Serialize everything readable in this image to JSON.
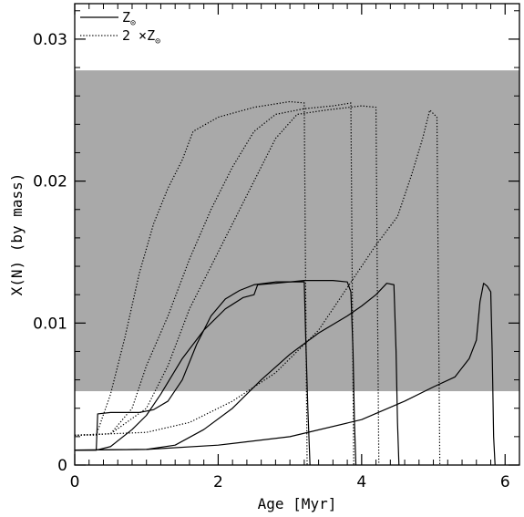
{
  "chart_data": {
    "type": "line",
    "xlabel": "Age [Myr]",
    "ylabel": "X(N) (by mass)",
    "xlim": [
      0,
      6.2
    ],
    "ylim": [
      0,
      0.0325
    ],
    "xticks": [
      0,
      2,
      4,
      6
    ],
    "yticks": [
      0,
      0.01,
      0.02,
      0.03
    ],
    "xtick_labels": [
      "0",
      "2",
      "4",
      "6"
    ],
    "ytick_labels": [
      "0",
      "0.01",
      "0.02",
      "0.03"
    ],
    "grid": false,
    "legend_position": "top-left",
    "shaded_band": {
      "y_range": [
        0.0052,
        0.0278
      ],
      "color": "#a9a9a9"
    },
    "legend": [
      {
        "label": "Z",
        "subscript": "⊙",
        "style": "solid"
      },
      {
        "label": "2 ×Z",
        "subscript": "⊙",
        "style": "dotted"
      }
    ],
    "series": [
      {
        "style": "solid",
        "points": [
          [
            0,
            0.00105
          ],
          [
            0.3,
            0.00105
          ],
          [
            0.32,
            0.0036
          ],
          [
            0.5,
            0.0037
          ],
          [
            0.9,
            0.0037
          ],
          [
            1.1,
            0.0039
          ],
          [
            1.3,
            0.0045
          ],
          [
            1.5,
            0.006
          ],
          [
            1.7,
            0.0085
          ],
          [
            1.9,
            0.0105
          ],
          [
            2.1,
            0.0117
          ],
          [
            2.3,
            0.0123
          ],
          [
            2.5,
            0.0127
          ],
          [
            2.8,
            0.0129
          ],
          [
            3.1,
            0.0129
          ],
          [
            3.2,
            0.0129
          ],
          [
            3.22,
            0.009
          ],
          [
            3.25,
            0.004
          ],
          [
            3.28,
            0
          ]
        ]
      },
      {
        "style": "solid",
        "points": [
          [
            0,
            0.00105
          ],
          [
            0.3,
            0.00105
          ],
          [
            0.5,
            0.0013
          ],
          [
            0.8,
            0.0025
          ],
          [
            1.0,
            0.0035
          ],
          [
            1.2,
            0.005
          ],
          [
            1.5,
            0.0075
          ],
          [
            1.8,
            0.0095
          ],
          [
            2.1,
            0.011
          ],
          [
            2.35,
            0.0118
          ],
          [
            2.5,
            0.012
          ],
          [
            2.55,
            0.0127
          ],
          [
            2.8,
            0.0128
          ],
          [
            3.2,
            0.013
          ],
          [
            3.6,
            0.013
          ],
          [
            3.8,
            0.0129
          ],
          [
            3.85,
            0.0122
          ],
          [
            3.88,
            0.008
          ],
          [
            3.9,
            0.003
          ],
          [
            3.92,
            0
          ]
        ]
      },
      {
        "style": "solid",
        "points": [
          [
            0,
            0.00105
          ],
          [
            1.0,
            0.0011
          ],
          [
            1.4,
            0.0014
          ],
          [
            1.8,
            0.0025
          ],
          [
            2.2,
            0.004
          ],
          [
            2.6,
            0.006
          ],
          [
            3.0,
            0.0078
          ],
          [
            3.4,
            0.0093
          ],
          [
            3.8,
            0.0105
          ],
          [
            4.0,
            0.0112
          ],
          [
            4.2,
            0.012
          ],
          [
            4.35,
            0.0128
          ],
          [
            4.45,
            0.0127
          ],
          [
            4.48,
            0.008
          ],
          [
            4.5,
            0.003
          ],
          [
            4.52,
            0
          ]
        ]
      },
      {
        "style": "solid",
        "points": [
          [
            0,
            0.00105
          ],
          [
            1.0,
            0.0011
          ],
          [
            2.0,
            0.0014
          ],
          [
            3.0,
            0.002
          ],
          [
            4.0,
            0.0032
          ],
          [
            4.6,
            0.0045
          ],
          [
            5.0,
            0.0055
          ],
          [
            5.3,
            0.0062
          ],
          [
            5.5,
            0.0075
          ],
          [
            5.6,
            0.0088
          ],
          [
            5.65,
            0.0115
          ],
          [
            5.7,
            0.0128
          ],
          [
            5.75,
            0.0126
          ],
          [
            5.8,
            0.0122
          ],
          [
            5.82,
            0.008
          ],
          [
            5.84,
            0.002
          ],
          [
            5.86,
            0
          ]
        ]
      },
      {
        "style": "dotted",
        "points": [
          [
            0,
            0.0021
          ],
          [
            0.3,
            0.0021
          ],
          [
            0.5,
            0.005
          ],
          [
            0.7,
            0.009
          ],
          [
            0.9,
            0.0135
          ],
          [
            1.1,
            0.017
          ],
          [
            1.3,
            0.0195
          ],
          [
            1.5,
            0.0215
          ],
          [
            1.65,
            0.0235
          ],
          [
            2.0,
            0.0245
          ],
          [
            2.5,
            0.0252
          ],
          [
            3.0,
            0.0256
          ],
          [
            3.2,
            0.0255
          ],
          [
            3.22,
            0.012
          ],
          [
            3.24,
            0
          ]
        ]
      },
      {
        "style": "dotted",
        "points": [
          [
            0,
            0.0021
          ],
          [
            0.5,
            0.0022
          ],
          [
            0.8,
            0.004
          ],
          [
            1.0,
            0.007
          ],
          [
            1.3,
            0.0105
          ],
          [
            1.6,
            0.0145
          ],
          [
            1.9,
            0.018
          ],
          [
            2.2,
            0.021
          ],
          [
            2.5,
            0.0235
          ],
          [
            2.8,
            0.0247
          ],
          [
            3.2,
            0.0251
          ],
          [
            3.6,
            0.0253
          ],
          [
            3.85,
            0.0255
          ],
          [
            3.87,
            0.012
          ],
          [
            3.89,
            0
          ]
        ]
      },
      {
        "style": "dotted",
        "points": [
          [
            0,
            0.0021
          ],
          [
            0.5,
            0.0022
          ],
          [
            1.0,
            0.004
          ],
          [
            1.3,
            0.007
          ],
          [
            1.6,
            0.011
          ],
          [
            2.0,
            0.015
          ],
          [
            2.4,
            0.019
          ],
          [
            2.8,
            0.023
          ],
          [
            3.1,
            0.0247
          ],
          [
            3.5,
            0.025
          ],
          [
            4.0,
            0.0253
          ],
          [
            4.2,
            0.0252
          ],
          [
            4.22,
            0.012
          ],
          [
            4.24,
            0
          ]
        ]
      },
      {
        "style": "dotted",
        "points": [
          [
            0,
            0.0021
          ],
          [
            1.0,
            0.0023
          ],
          [
            1.6,
            0.003
          ],
          [
            2.2,
            0.0045
          ],
          [
            2.8,
            0.0065
          ],
          [
            3.4,
            0.0095
          ],
          [
            3.8,
            0.0125
          ],
          [
            4.2,
            0.0155
          ],
          [
            4.5,
            0.0175
          ],
          [
            4.7,
            0.0205
          ],
          [
            4.85,
            0.023
          ],
          [
            4.95,
            0.025
          ],
          [
            5.05,
            0.0245
          ],
          [
            5.07,
            0.012
          ],
          [
            5.09,
            0
          ]
        ]
      }
    ]
  }
}
